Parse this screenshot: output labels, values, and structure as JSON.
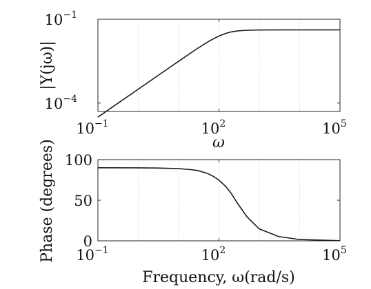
{
  "chart_data": [
    {
      "type": "line",
      "title": "",
      "xlabel": "ω",
      "ylabel": "|Y(jω)|",
      "x_scale": "log",
      "y_scale": "log",
      "xlim": [
        0.1,
        100000
      ],
      "ylim": [
        5e-05,
        0.1
      ],
      "x_ticks": [
        {
          "value": 0.1,
          "base": "10",
          "exp": "−1"
        },
        {
          "value": 100,
          "base": "10",
          "exp": "2"
        },
        {
          "value": 100000,
          "base": "10",
          "exp": "5"
        }
      ],
      "y_ticks": [
        {
          "value": 0.0001,
          "base": "10",
          "exp": "−4"
        },
        {
          "value": 0.1,
          "base": "10",
          "exp": "−1"
        }
      ],
      "grid": "vertical-dotted",
      "legend": "none",
      "series": [
        {
          "x": [
            0.1,
            0.3,
            1,
            3,
            10,
            30,
            60,
            100,
            150,
            200,
            300,
            500,
            1000,
            3000,
            10000,
            100000
          ],
          "y": [
            3.14e-05,
            9.43e-05,
            0.000314,
            0.000943,
            0.00313,
            0.00924,
            0.0172,
            0.0251,
            0.0314,
            0.0352,
            0.0386,
            0.0406,
            0.0414,
            0.0416,
            0.0416,
            0.0416
          ]
        }
      ]
    },
    {
      "type": "line",
      "title": "",
      "xlabel": "Frequency, ω(rad/s)",
      "ylabel": "Phase (degrees)",
      "x_scale": "log",
      "xlim": [
        0.1,
        100000
      ],
      "ylim": [
        0,
        100
      ],
      "x_ticks": [
        {
          "value": 0.1,
          "base": "10",
          "exp": "−1"
        },
        {
          "value": 100,
          "base": "10",
          "exp": "2"
        },
        {
          "value": 100000,
          "base": "10",
          "exp": "5"
        }
      ],
      "y_ticks": [
        {
          "value": 0,
          "label": "0"
        },
        {
          "value": 50,
          "label": "50"
        },
        {
          "value": 100,
          "label": "100"
        }
      ],
      "grid": "vertical-dotted",
      "legend": "none",
      "series": [
        {
          "x": [
            0.1,
            1,
            3,
            10,
            20,
            30,
            50,
            70,
            100,
            150,
            200,
            300,
            500,
            1000,
            3000,
            10000,
            100000
          ],
          "y": [
            90,
            89.9,
            89.7,
            88.9,
            87.7,
            86.6,
            83.3,
            79.9,
            74.8,
            66.6,
            58.6,
            44.9,
            29.4,
            14.7,
            5.3,
            1.6,
            0.2
          ]
        }
      ]
    }
  ],
  "colors": {
    "line": "#1a1a1a",
    "axis": "#262626",
    "grid": "#cfcfcf"
  }
}
